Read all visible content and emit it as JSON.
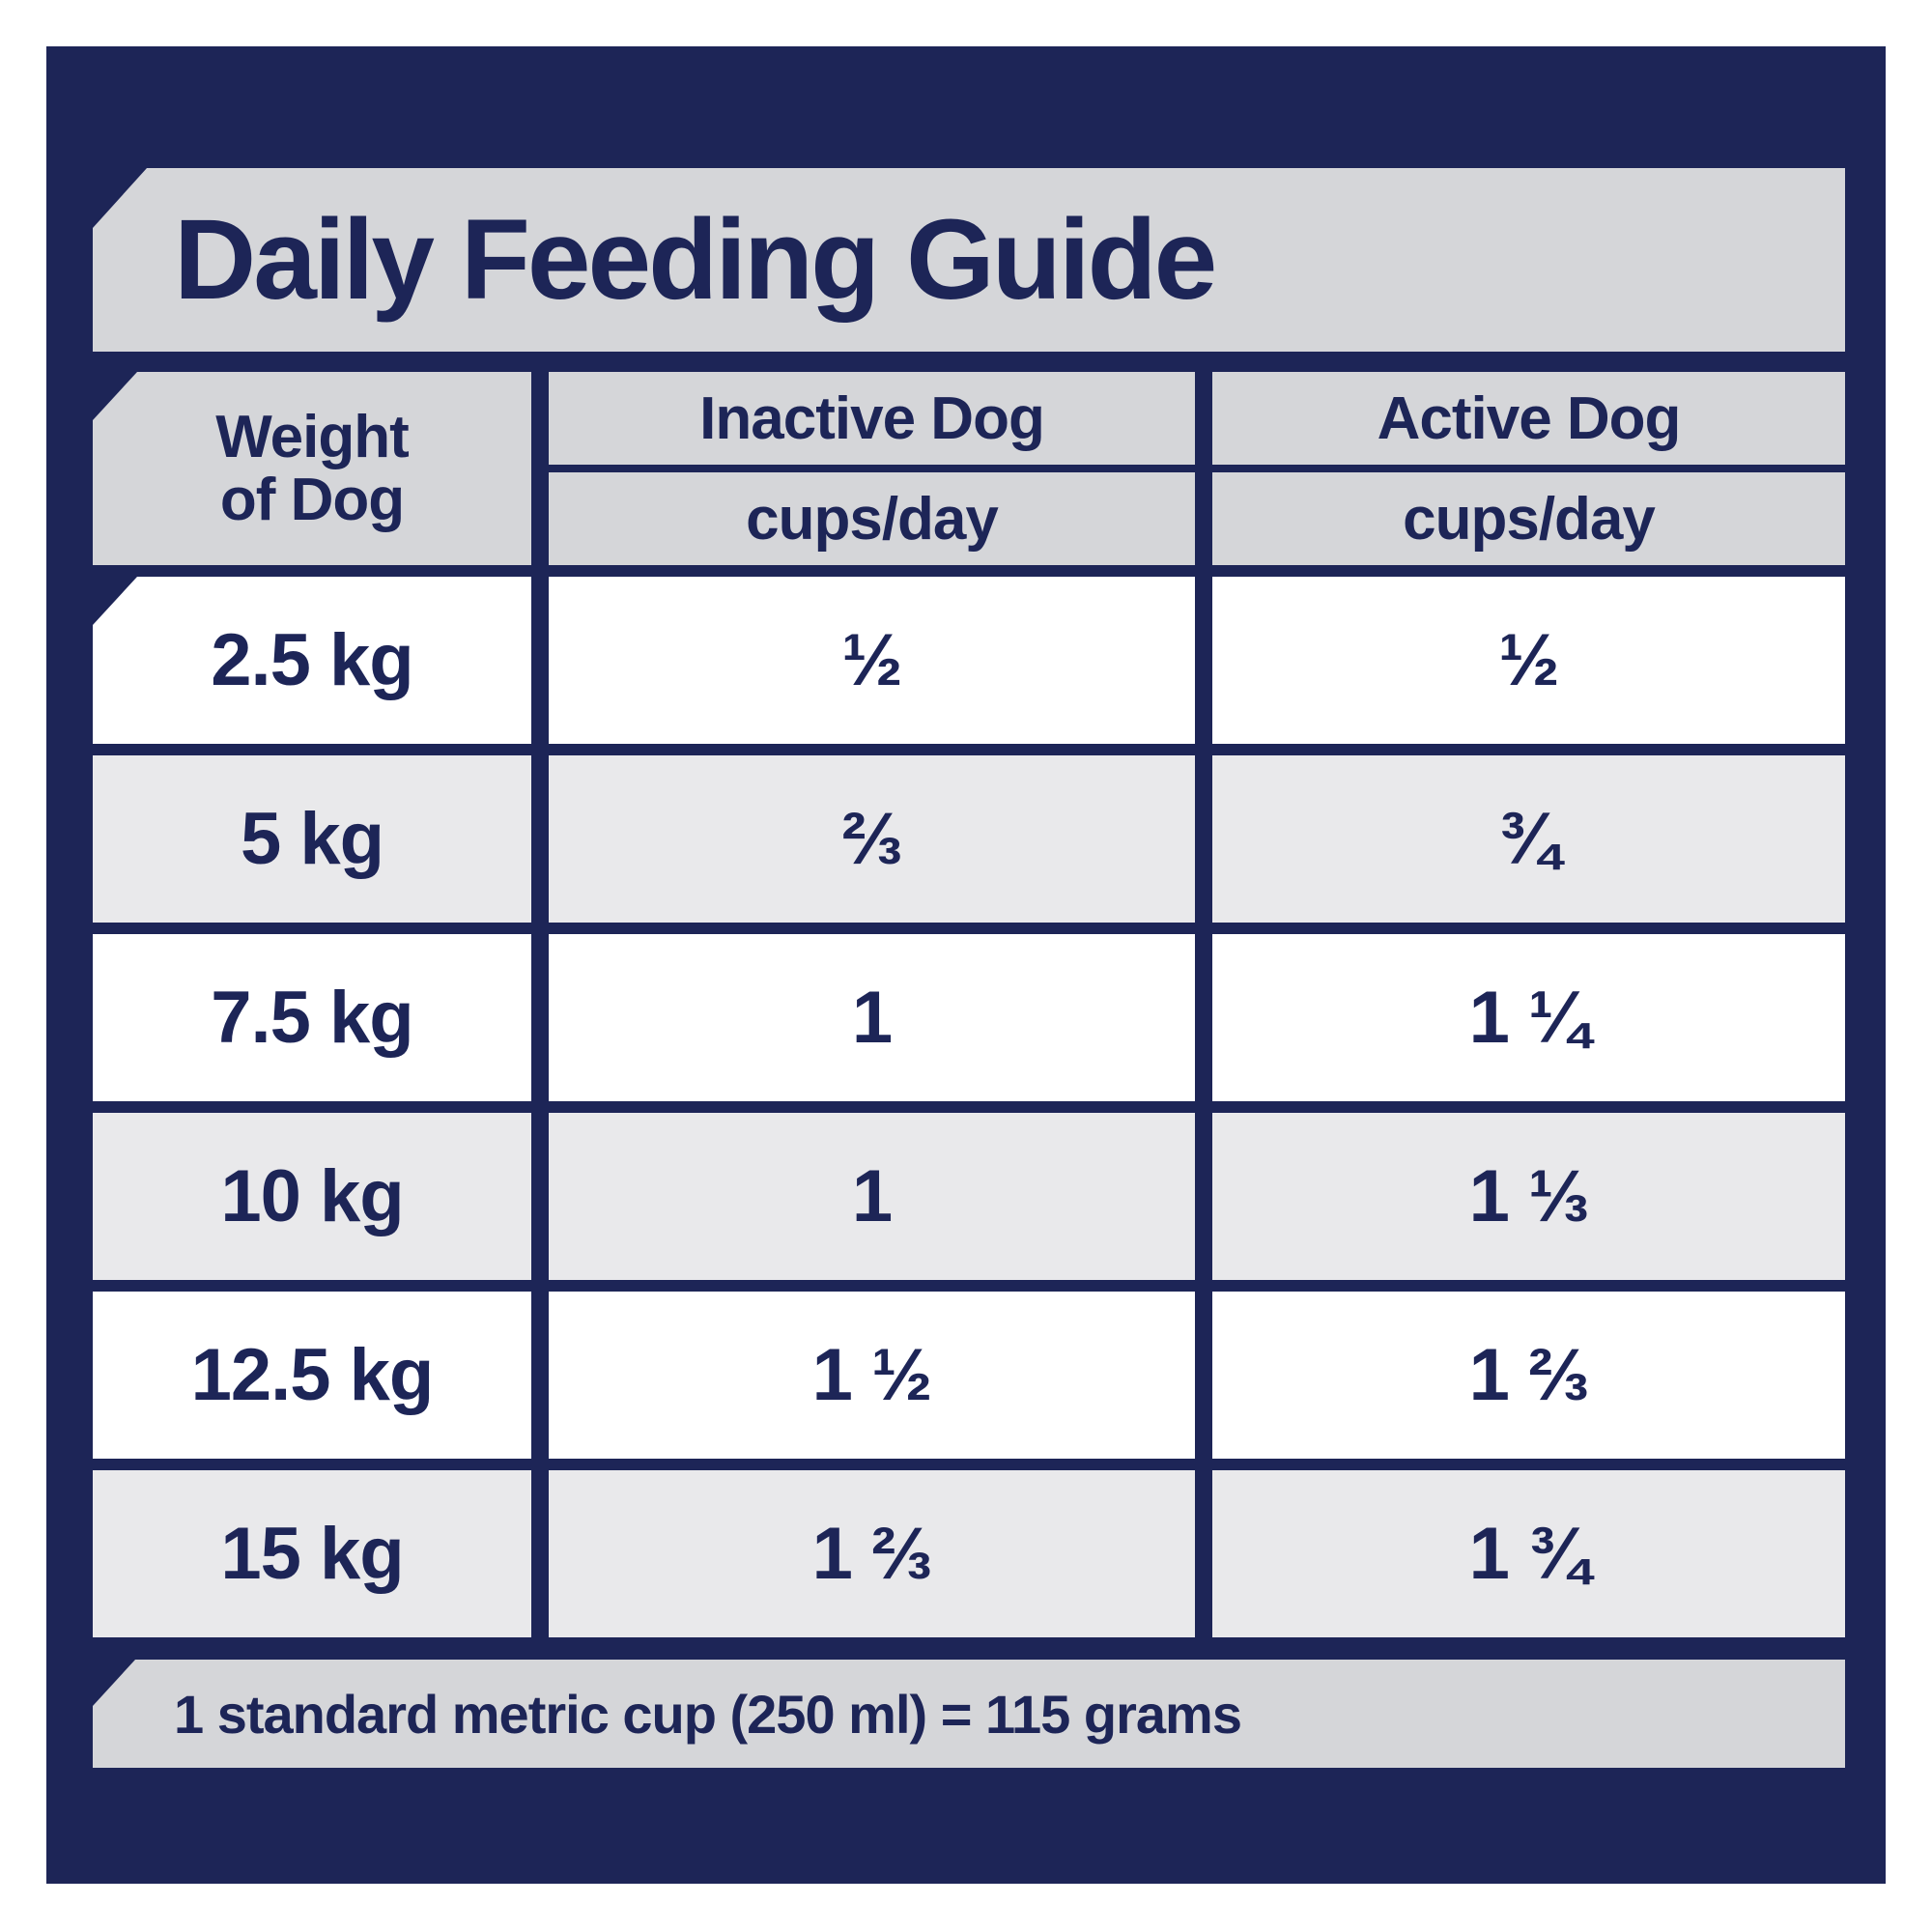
{
  "title": "Daily Feeding Guide",
  "colors": {
    "panel_navy": "#1d2557",
    "banner_gray": "#d5d6d9",
    "alt_row_gray": "#e9e9eb",
    "row_white": "#ffffff",
    "text_navy": "#1d2557"
  },
  "table": {
    "weight_header_line1": "Weight",
    "weight_header_line2": "of Dog",
    "columns": [
      {
        "label": "Weight of Dog",
        "unit": ""
      },
      {
        "label": "Inactive Dog",
        "unit": "cups/day"
      },
      {
        "label": "Active Dog",
        "unit": "cups/day"
      }
    ],
    "rows": [
      {
        "weight": "2.5 kg",
        "inactive": "½",
        "active": "½"
      },
      {
        "weight": "5 kg",
        "inactive": "⅔",
        "active": "¾"
      },
      {
        "weight": "7.5 kg",
        "inactive": "1",
        "active": "1 ¼"
      },
      {
        "weight": "10 kg",
        "inactive": "1",
        "active": "1 ⅓"
      },
      {
        "weight": "12.5 kg",
        "inactive": "1 ½",
        "active": "1 ⅔"
      },
      {
        "weight": "15 kg",
        "inactive": "1 ⅔",
        "active": "1 ¾"
      }
    ]
  },
  "footer": {
    "note": "1 standard metric cup (250 ml) = 115 grams"
  },
  "chart_data": {
    "type": "table",
    "title": "Daily Feeding Guide",
    "columns": [
      "Weight of Dog",
      "Inactive Dog cups/day",
      "Active Dog cups/day"
    ],
    "rows": [
      [
        "2.5 kg",
        "½",
        "½"
      ],
      [
        "5 kg",
        "⅔",
        "¾"
      ],
      [
        "7.5 kg",
        "1",
        "1 ¼"
      ],
      [
        "10 kg",
        "1",
        "1 ⅓"
      ],
      [
        "12.5 kg",
        "1 ½",
        "1 ⅔"
      ],
      [
        "15 kg",
        "1 ⅔",
        "1 ¾"
      ]
    ],
    "weights_kg": [
      2.5,
      5,
      7.5,
      10,
      12.5,
      15
    ],
    "inactive_cups_per_day": [
      0.5,
      0.667,
      1,
      1,
      1.5,
      1.667
    ],
    "active_cups_per_day": [
      0.5,
      0.75,
      1.25,
      1.333,
      1.667,
      1.75
    ],
    "footnote": "1 standard metric cup (250 ml) = 115 grams"
  }
}
